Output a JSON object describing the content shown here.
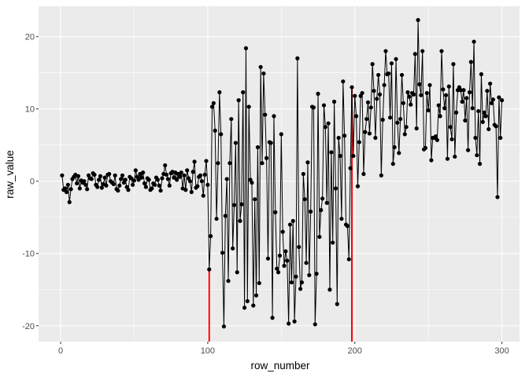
{
  "chart_data": {
    "type": "line",
    "xlabel": "row_number",
    "ylabel": "raw_value",
    "xlim": [
      -15,
      312
    ],
    "ylim": [
      -22.2,
      24.2
    ],
    "x_ticks": [
      "0",
      "100",
      "200",
      "300"
    ],
    "y_ticks": [
      "-20",
      "-10",
      "0",
      "10",
      "20"
    ],
    "grid": true,
    "markers": true,
    "line_color": "#000000",
    "highlight_color": "#ff0000",
    "change_points": [
      101,
      198
    ],
    "y": [
      0.8,
      -1.2,
      -1.0,
      -1.5,
      -0.5,
      -2.9,
      -1.1,
      0.3,
      0.6,
      0.9,
      -0.3,
      0.7,
      -1.0,
      0.1,
      -0.2,
      0.0,
      -0.5,
      -1.1,
      0.8,
      0.4,
      0.3,
      1.1,
      0.9,
      -0.5,
      -0.8,
      0.2,
      0.7,
      -0.9,
      -0.4,
      0.5,
      -0.6,
      0.9,
      1.0,
      0.0,
      -0.2,
      -0.4,
      0.8,
      -1.1,
      -1.3,
      -0.6,
      0.3,
      0.8,
      -0.2,
      0.2,
      -0.8,
      -1.2,
      0.6,
      0.4,
      -0.5,
      0.1,
      1.5,
      0.6,
      0.2,
      1.0,
      0.5,
      1.2,
      -0.3,
      -0.8,
      0.4,
      0.2,
      -1.2,
      -1.0,
      -0.3,
      -0.5,
      0.5,
      0.2,
      -0.6,
      -1.3,
      0.4,
      1.0,
      2.2,
      0.9,
      0.3,
      -0.6,
      1.1,
      1.3,
      0.5,
      1.2,
      0.2,
      1.0,
      0.6,
      1.2,
      -1.0,
      0.8,
      -1.2,
      1.5,
      0.4,
      0.0,
      -1.5,
      1.3,
      2.7,
      -0.9,
      -0.7,
      0.6,
      0.8,
      0.0,
      -2.0,
      0.9,
      2.8,
      -0.5,
      -12.2,
      -7.6,
      10.3,
      10.8,
      7.0,
      -5.2,
      2.5,
      12.3,
      6.5,
      -9.9,
      -20.1,
      -4.8,
      0.3,
      -13.8,
      2.5,
      8.6,
      -9.3,
      -3.3,
      5.3,
      -12.6,
      11.2,
      -5.5,
      -3.2,
      12.3,
      -17.5,
      18.4,
      -16.6,
      10.3,
      0.2,
      -0.2,
      -17.2,
      -2.5,
      -15.8,
      4.7,
      -14.1,
      15.8,
      2.5,
      14.9,
      9.2,
      3.2,
      -10.7,
      5.4,
      5.3,
      -18.9,
      9.0,
      -4.3,
      -12.1,
      -12.6,
      -10.3,
      6.5,
      -7.0,
      -11.7,
      -9.7,
      -11.0,
      -19.7,
      -6.0,
      -14.0,
      -5.5,
      -19.4,
      -13.2,
      17.0,
      -9.1,
      -14.9,
      -14.0,
      1.0,
      -2.5,
      -11.3,
      2.6,
      -13.0,
      -4.2,
      10.3,
      10.2,
      -19.8,
      -12.8,
      12.1,
      -7.7,
      -4.0,
      -2.4,
      10.5,
      7.5,
      -3.0,
      8.0,
      -15.0,
      4.0,
      -8.5,
      11.0,
      -1.0,
      -17.0,
      6.0,
      3.5,
      -5.2,
      13.8,
      6.3,
      -6.0,
      -6.2,
      -10.8,
      1.8,
      13.0,
      3.5,
      11.8,
      9.0,
      -0.7,
      5.4,
      11.8,
      12.2,
      1.0,
      6.8,
      8.6,
      10.9,
      6.6,
      10.2,
      16.2,
      12.5,
      6.0,
      11.4,
      14.7,
      12.0,
      0.8,
      8.5,
      13.3,
      18.0,
      14.8,
      14.9,
      8.8,
      16.3,
      2.4,
      4.7,
      16.9,
      8.1,
      3.9,
      8.6,
      14.7,
      10.8,
      6.5,
      7.5,
      12.3,
      11.7,
      10.6,
      12.2,
      12.0,
      17.6,
      7.3,
      22.3,
      13.4,
      11.9,
      18.0,
      4.4,
      4.6,
      12.2,
      9.8,
      13.3,
      2.9,
      6.0,
      6.0,
      6.2,
      5.7,
      10.5,
      9.0,
      18.0,
      12.7,
      10.1,
      11.9,
      3.1,
      13.1,
      7.5,
      5.8,
      16.2,
      3.4,
      9.5,
      12.6,
      13.0,
      12.6,
      11.0,
      12.6,
      8.4,
      11.5,
      4.3,
      12.3,
      16.5,
      10.1,
      19.3,
      6.0,
      3.6,
      9.7,
      2.4,
      14.8,
      8.2,
      9.5,
      9.0,
      12.5,
      7.2,
      13.5,
      10.8,
      11.3,
      7.8,
      7.6,
      -2.2,
      11.6,
      6.0,
      11.2
    ]
  }
}
